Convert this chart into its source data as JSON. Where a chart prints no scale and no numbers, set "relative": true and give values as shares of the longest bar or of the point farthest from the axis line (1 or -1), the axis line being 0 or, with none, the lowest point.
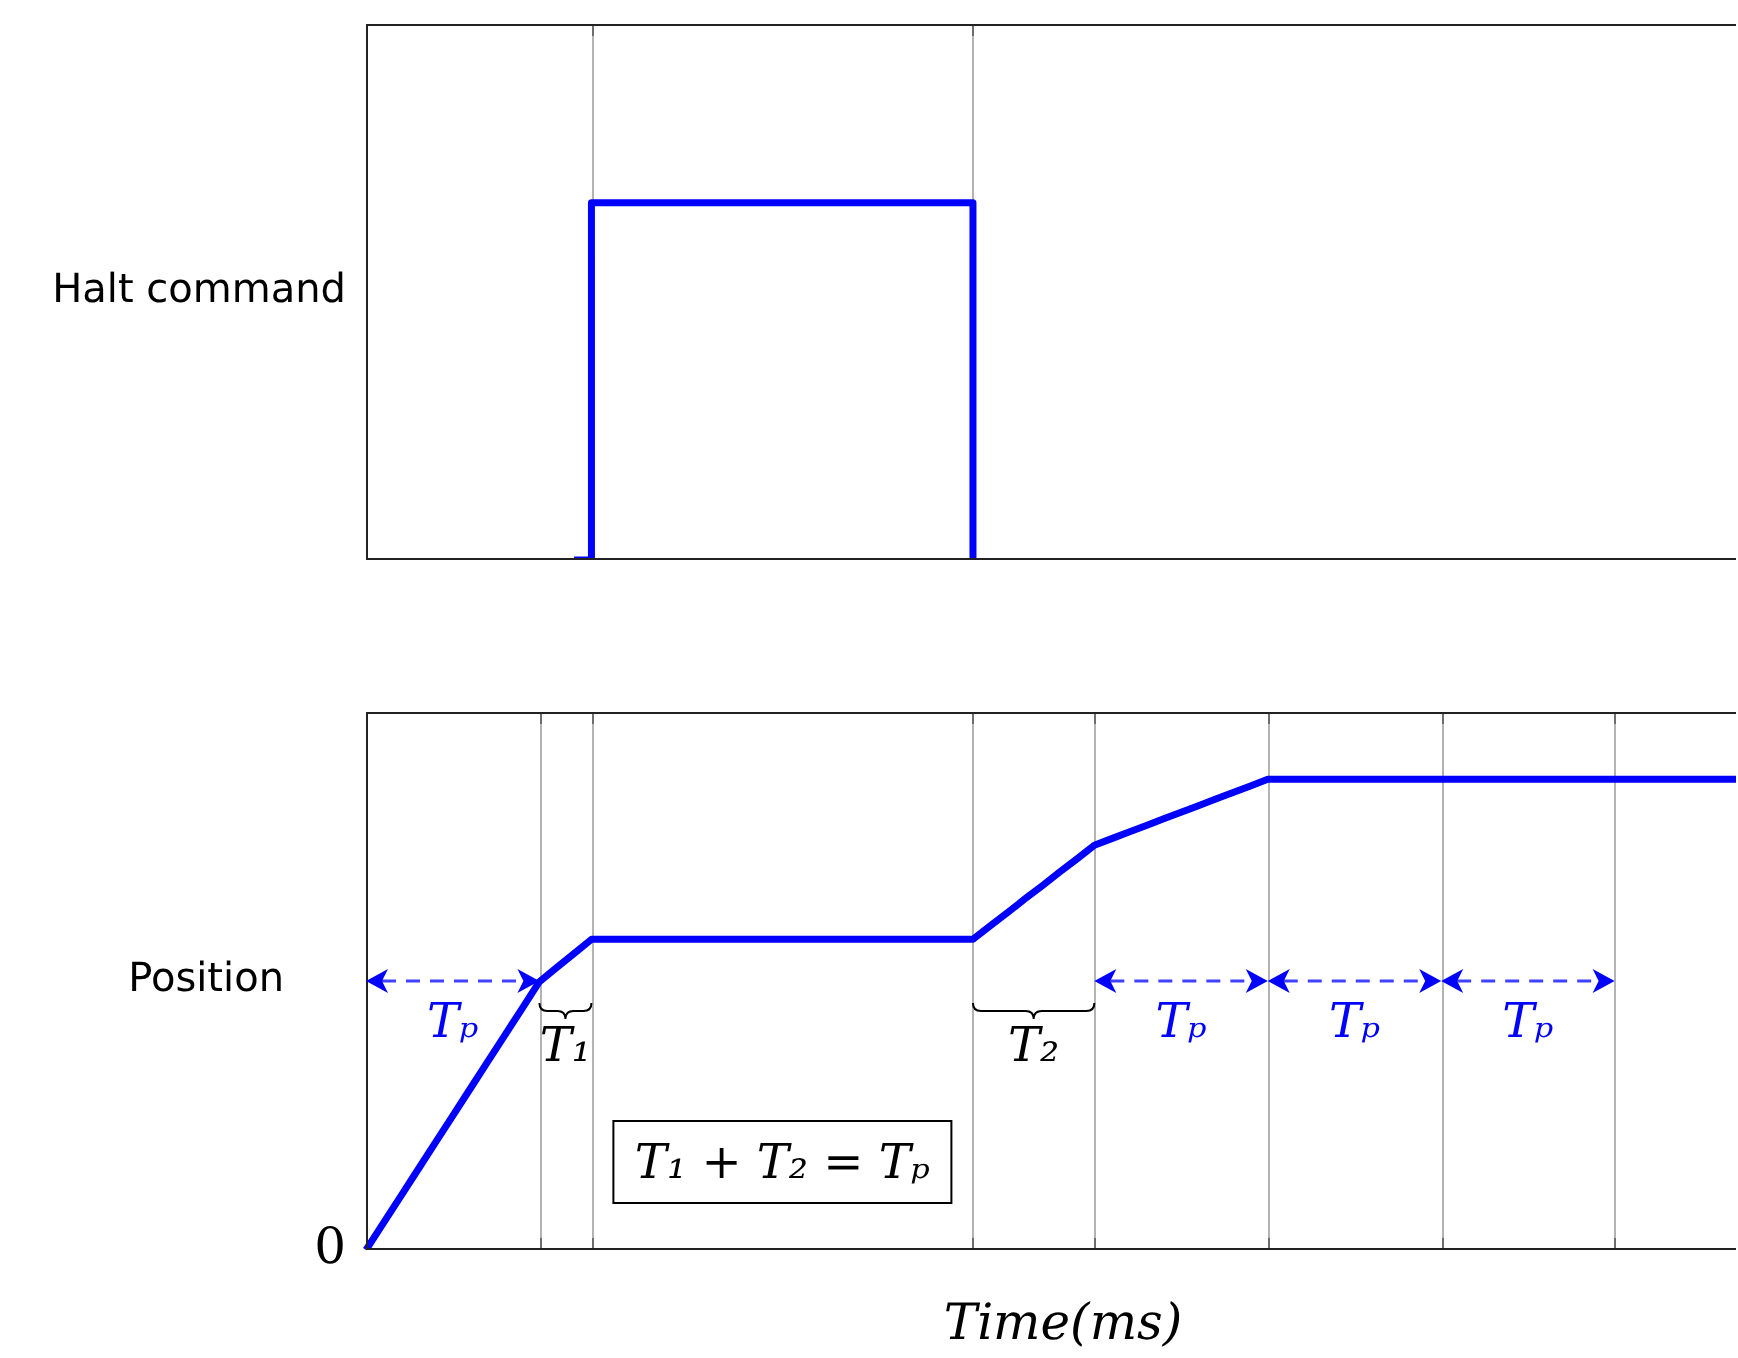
{
  "chart_data": [
    {
      "type": "step",
      "ylabel": "Halt command",
      "categories": [
        null,
        null,
        null,
        null,
        null,
        null,
        null,
        null,
        null,
        null,
        null,
        null,
        null,
        null,
        null,
        null,
        null,
        null,
        null,
        null,
        null,
        null,
        null,
        null,
        null,
        null,
        null,
        null,
        null,
        null,
        null,
        null,
        null,
        null,
        null,
        null,
        null,
        null,
        null,
        null,
        null,
        null,
        null,
        null,
        null,
        null,
        null,
        null,
        null,
        null,
        null,
        null,
        null,
        null,
        null,
        null,
        null,
        null,
        null,
        null,
        null,
        null,
        null,
        null,
        null,
        null,
        null,
        null,
        null,
        null,
        null,
        null,
        null,
        null,
        null,
        null,
        null,
        null,
        null,
        null
      ],
      "values": [
        null,
        null,
        null,
        null,
        null,
        null,
        null,
        null,
        null,
        null,
        null,
        null,
        0,
        1,
        1,
        1,
        1,
        1,
        1,
        1,
        1,
        1,
        1,
        1,
        1,
        1,
        1,
        1,
        1,
        1,
        1,
        1,
        1,
        1,
        1,
        0,
        null,
        null,
        null,
        null,
        null,
        null,
        null,
        null,
        null,
        null,
        null,
        null,
        null,
        null,
        null,
        null,
        null,
        null,
        null,
        null,
        null,
        null,
        null,
        null,
        null,
        null,
        null,
        null,
        null,
        null,
        null,
        null,
        null,
        null,
        null,
        null,
        null,
        null,
        null,
        null,
        null,
        null,
        null,
        null
      ],
      "relative": true,
      "color": "#0000ff",
      "tick_labels": false,
      "marker": "none",
      "grid": "x"
    },
    {
      "type": "line",
      "ylabel": "Position",
      "xlabel": "Time(ms)",
      "categories": [
        null,
        null,
        null,
        null,
        null,
        null,
        null,
        null,
        null,
        null,
        null,
        null,
        null,
        null,
        null,
        null,
        null,
        null,
        null,
        null,
        null,
        null,
        null,
        null,
        null,
        null,
        null,
        null,
        null,
        null,
        null,
        null,
        null,
        null,
        null,
        null,
        null,
        null,
        null,
        null,
        null,
        null,
        null,
        null,
        null,
        null,
        null,
        null,
        null,
        null,
        null,
        null,
        null,
        null,
        null,
        null,
        null,
        null,
        null,
        null,
        null,
        null,
        null,
        null,
        null,
        null,
        null,
        null,
        null,
        null,
        null,
        null,
        null,
        null,
        null,
        null,
        null,
        null,
        null,
        null
      ],
      "values": [
        0,
        0.057,
        0.114,
        0.171,
        0.228,
        0.285,
        0.342,
        0.399,
        0.456,
        0.513,
        0.57,
        0.6,
        0.63,
        0.66,
        0.66,
        0.66,
        0.66,
        0.66,
        0.66,
        0.66,
        0.66,
        0.66,
        0.66,
        0.66,
        0.66,
        0.66,
        0.66,
        0.66,
        0.66,
        0.66,
        0.66,
        0.66,
        0.66,
        0.66,
        0.66,
        0.66,
        0.689,
        0.717,
        0.746,
        0.774,
        0.803,
        0.831,
        0.86,
        0.874,
        0.888,
        0.902,
        0.916,
        0.93,
        0.944,
        0.958,
        0.972,
        0.986,
        1,
        1,
        1,
        1,
        1,
        1,
        1,
        1,
        1,
        1,
        1,
        1,
        1,
        1,
        1,
        1,
        1,
        1,
        1,
        1,
        1,
        1,
        1,
        1,
        1,
        1,
        1,
        1
      ],
      "relative": true,
      "color": "#0000ff",
      "tick_labels": false,
      "marker": "none",
      "grid": "x",
      "annotations": [
        "Tₚ",
        "T₁",
        "T₂",
        "Tₚ",
        "Tₚ",
        "Tₚ",
        "T₁ + T₂ = Tₚ",
        "0"
      ]
    }
  ]
}
